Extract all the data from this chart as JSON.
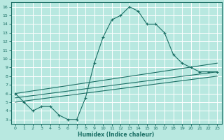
{
  "bg_color": "#b8e8e0",
  "grid_color": "#d4f0ea",
  "line_color": "#1a6e64",
  "xlabel": "Humidex (Indice chaleur)",
  "xlim": [
    -0.5,
    23.5
  ],
  "ylim": [
    2.5,
    16.5
  ],
  "xticks": [
    0,
    1,
    2,
    3,
    4,
    5,
    6,
    7,
    8,
    9,
    10,
    11,
    12,
    13,
    14,
    15,
    16,
    17,
    18,
    19,
    20,
    21,
    22,
    23
  ],
  "yticks": [
    3,
    4,
    5,
    6,
    7,
    8,
    9,
    10,
    11,
    12,
    13,
    14,
    15,
    16
  ],
  "line1_x": [
    0,
    1,
    2,
    3,
    4,
    5,
    6,
    7,
    8,
    9,
    10,
    11,
    12,
    13,
    14,
    15,
    16,
    17,
    18,
    19,
    20,
    21,
    22,
    23
  ],
  "line1_y": [
    6.0,
    5.0,
    4.0,
    4.5,
    4.5,
    3.5,
    3.0,
    3.0,
    5.5,
    9.5,
    12.5,
    14.5,
    15.0,
    16.0,
    15.5,
    14.0,
    14.0,
    13.0,
    10.5,
    9.5,
    9.0,
    8.5,
    8.5,
    8.5
  ],
  "line2_x": [
    0,
    23
  ],
  "line2_y": [
    6.0,
    9.5
  ],
  "line3_x": [
    0,
    23
  ],
  "line3_y": [
    5.5,
    8.5
  ],
  "line4_x": [
    0,
    23
  ],
  "line4_y": [
    5.0,
    8.0
  ]
}
